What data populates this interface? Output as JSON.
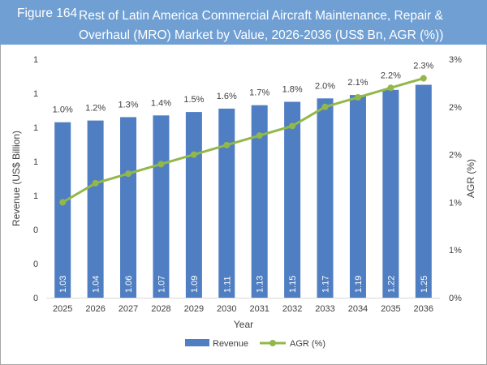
{
  "figure_label": "Figure 164",
  "title": "Rest of Latin America Commercial Aircraft Maintenance, Repair & Overhaul (MRO) Market by Value, 2026-2036 (US$ Bn, AGR (%))",
  "colors": {
    "bar": "#4f7ec2",
    "line": "#92b84a",
    "title_bg": "#6f9fd3"
  },
  "chart_data": {
    "type": "bar+line",
    "categories": [
      "2025",
      "2026",
      "2027",
      "2028",
      "2029",
      "2030",
      "2031",
      "2032",
      "2033",
      "2034",
      "2035",
      "2036"
    ],
    "series": [
      {
        "name": "Revenue",
        "type": "bar",
        "axis": "left",
        "values": [
          1.03,
          1.04,
          1.06,
          1.07,
          1.09,
          1.11,
          1.13,
          1.15,
          1.17,
          1.19,
          1.22,
          1.25
        ],
        "labels": [
          "1.03",
          "1.04",
          "1.06",
          "1.07",
          "1.09",
          "1.11",
          "1.13",
          "1.15",
          "1.17",
          "1.19",
          "1.22",
          "1.25"
        ]
      },
      {
        "name": "AGR (%)",
        "type": "line",
        "axis": "right",
        "values": [
          1.0,
          1.2,
          1.3,
          1.4,
          1.5,
          1.6,
          1.7,
          1.8,
          2.0,
          2.1,
          2.2,
          2.3
        ],
        "labels": [
          "1.0%",
          "1.2%",
          "1.3%",
          "1.4%",
          "1.5%",
          "1.6%",
          "1.7%",
          "1.8%",
          "2.0%",
          "2.1%",
          "2.2%",
          "2.3%"
        ]
      }
    ],
    "xlabel": "Year",
    "ylabel": "Revenue (US$ Billion)",
    "y2label": "AGR (%)",
    "ylim": [
      0,
      1.4
    ],
    "yticks": [
      0,
      0.2,
      0.4,
      0.6,
      0.8,
      1.0,
      1.2,
      1.4
    ],
    "ytick_labels": [
      "0",
      "0",
      "0",
      "1",
      "1",
      "1",
      "1",
      "1"
    ],
    "y2lim": [
      0,
      2.5
    ],
    "y2ticks": [
      0,
      0.5,
      1.0,
      1.5,
      2.0,
      2.5
    ],
    "y2tick_labels": [
      "0%",
      "1%",
      "1%",
      "2%",
      "2%",
      "3%"
    ],
    "grid": false,
    "legend": "bottom"
  }
}
